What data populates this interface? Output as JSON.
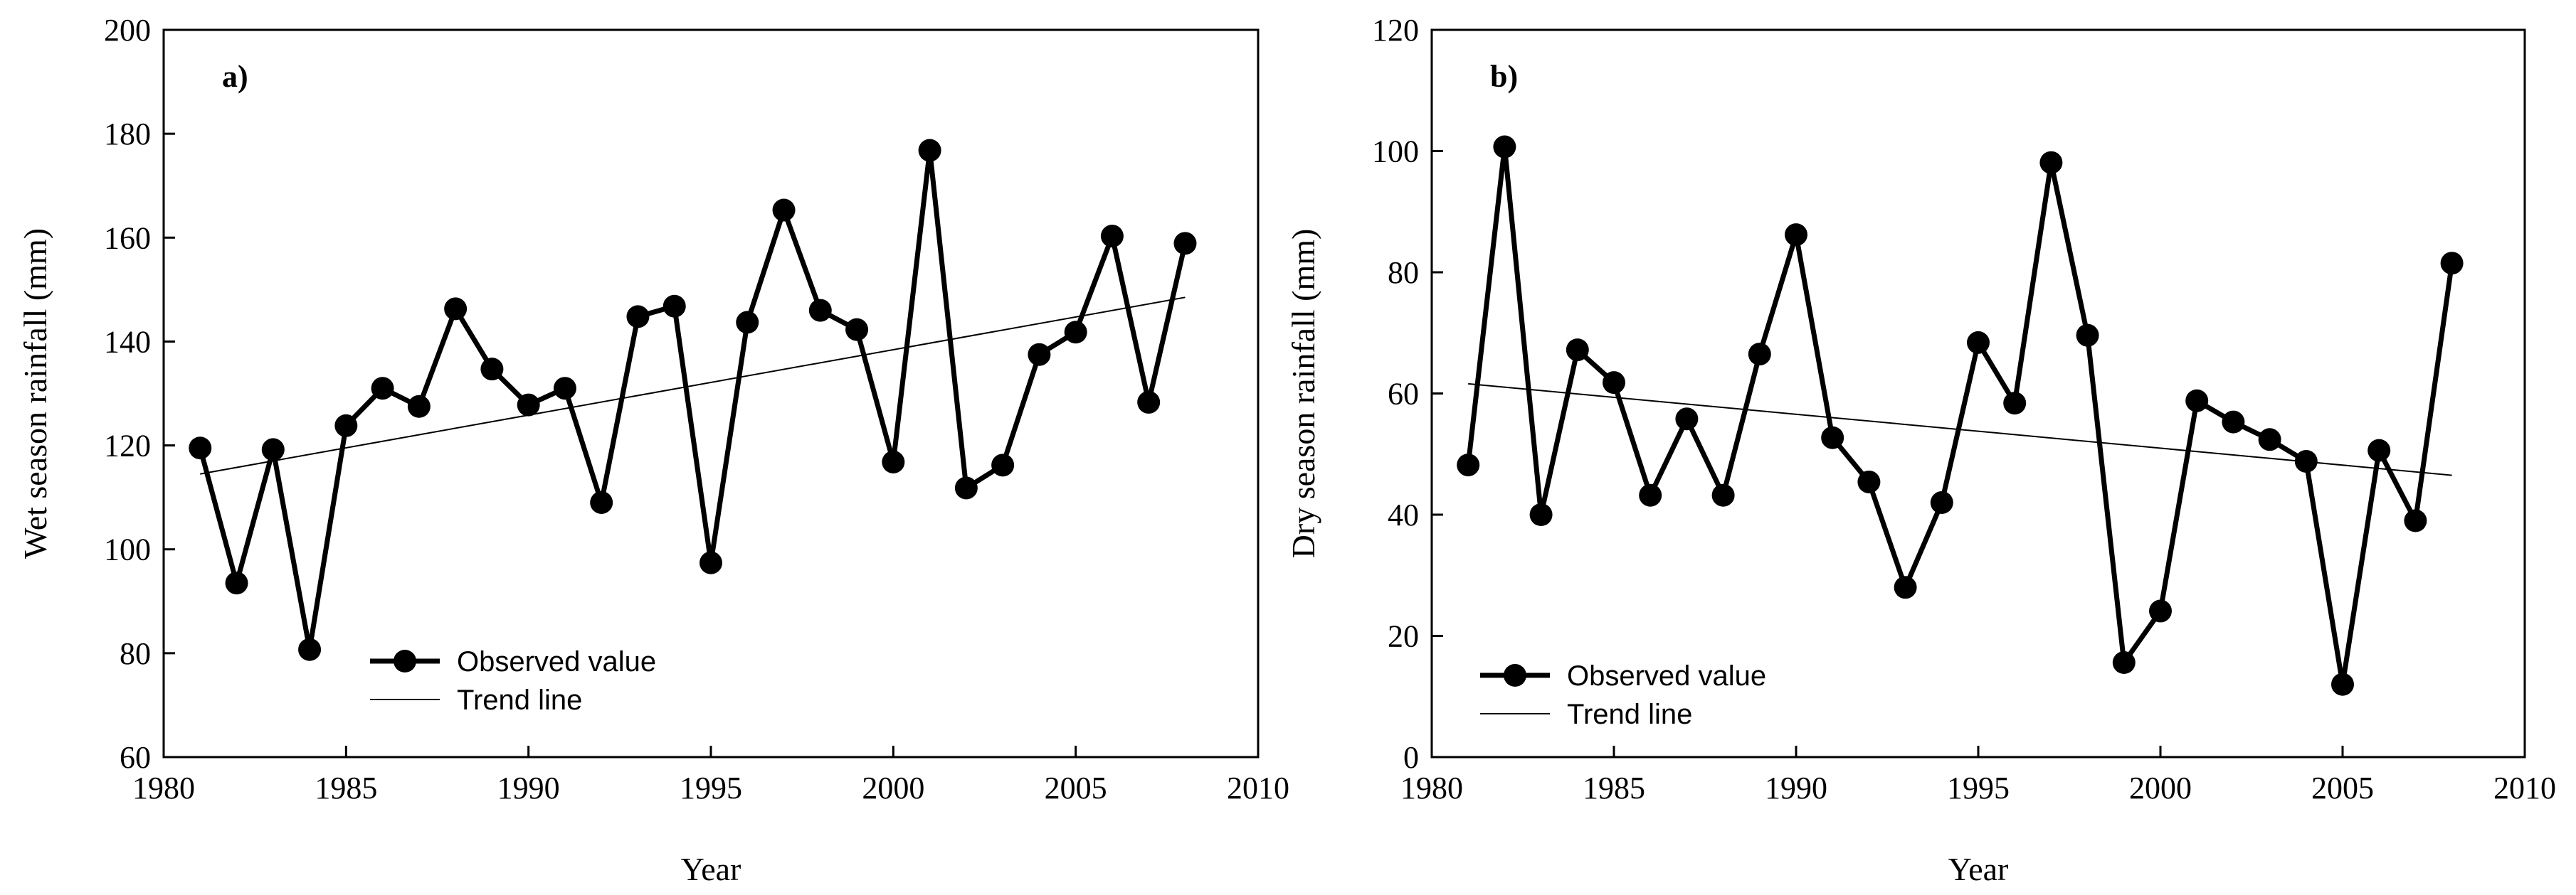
{
  "chart_data": [
    {
      "type": "line",
      "panel_label": "a)",
      "xlabel": "Year",
      "ylabel": "Wet season rainfall (mm)",
      "xlim": [
        1980,
        2010
      ],
      "ylim": [
        60,
        200
      ],
      "xticks": [
        1980,
        1985,
        1990,
        1995,
        2000,
        2005,
        2010
      ],
      "yticks": [
        60,
        80,
        100,
        120,
        140,
        160,
        180,
        200
      ],
      "legend_position": "bottom-left",
      "series": [
        {
          "name": "Observed value",
          "x": [
            1981,
            1982,
            1983,
            1984,
            1985,
            1986,
            1987,
            1988,
            1989,
            1990,
            1991,
            1992,
            1993,
            1994,
            1995,
            1996,
            1997,
            1998,
            1999,
            2000,
            2001,
            2002,
            2003,
            2004,
            2005,
            2006,
            2007,
            2008
          ],
          "values": [
            119.5,
            93.5,
            119.2,
            80.7,
            123.8,
            131.0,
            127.5,
            146.3,
            134.7,
            127.8,
            131.0,
            109.0,
            144.8,
            146.8,
            97.4,
            143.7,
            165.3,
            146.0,
            142.3,
            116.8,
            176.8,
            111.8,
            116.2,
            137.5,
            141.8,
            160.3,
            128.3,
            158.9
          ]
        },
        {
          "name": "Trend line",
          "x": [
            1981,
            2008
          ],
          "values": [
            114.5,
            148.5
          ]
        }
      ]
    },
    {
      "type": "line",
      "panel_label": "b)",
      "xlabel": "Year",
      "ylabel": "Dry season rainfall (mm)",
      "xlim": [
        1980,
        2010
      ],
      "ylim": [
        0,
        120
      ],
      "xticks": [
        1980,
        1985,
        1990,
        1995,
        2000,
        2005,
        2010
      ],
      "yticks": [
        0,
        20,
        40,
        60,
        80,
        100,
        120
      ],
      "legend_position": "bottom-left",
      "series": [
        {
          "name": "Observed value",
          "x": [
            1981,
            1982,
            1983,
            1984,
            1985,
            1986,
            1987,
            1988,
            1989,
            1990,
            1991,
            1992,
            1993,
            1994,
            1995,
            1996,
            1997,
            1998,
            1999,
            2000,
            2001,
            2002,
            2003,
            2004,
            2005,
            2006,
            2007,
            2008
          ],
          "values": [
            48.2,
            100.7,
            40.0,
            67.2,
            61.8,
            43.2,
            55.8,
            43.2,
            66.5,
            86.2,
            52.7,
            45.4,
            28.0,
            42.0,
            68.4,
            58.4,
            98.1,
            69.6,
            15.6,
            24.1,
            58.8,
            55.3,
            52.4,
            48.8,
            12.0,
            50.6,
            39.0,
            81.5
          ]
        },
        {
          "name": "Trend line",
          "x": [
            1981,
            2008
          ],
          "values": [
            61.6,
            46.5
          ]
        }
      ]
    }
  ]
}
